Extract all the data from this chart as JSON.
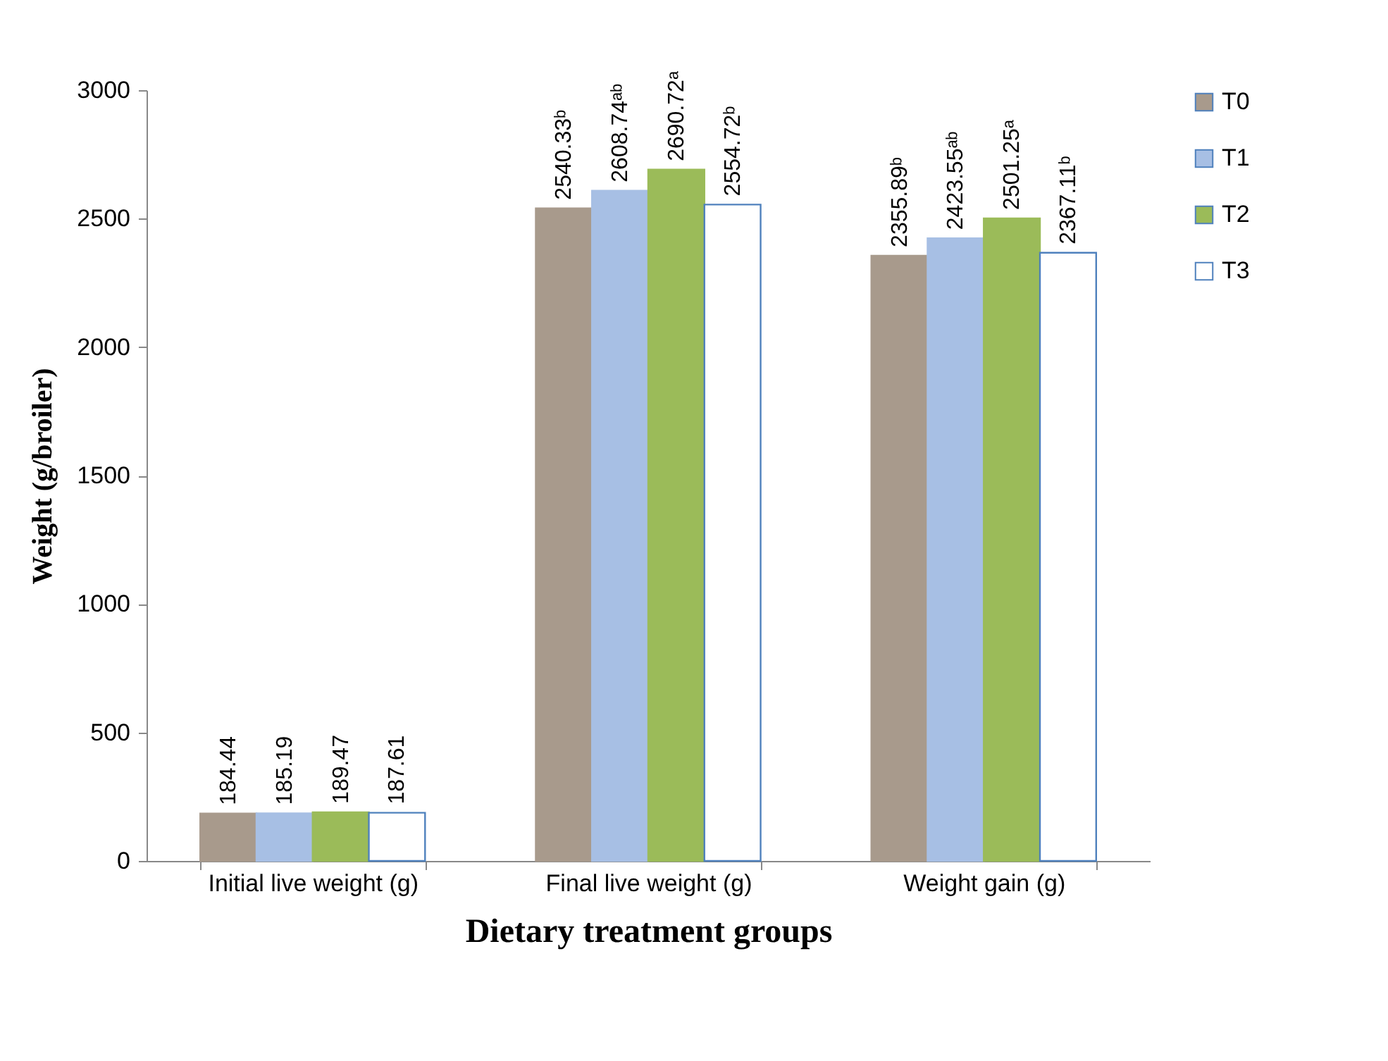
{
  "chart_data": {
    "type": "bar",
    "xlabel": "Dietary treatment groups",
    "ylabel": "Weight  (g/broiler)",
    "categories": [
      "Initial live weight (g)",
      "Final live weight (g)",
      "Weight gain (g)"
    ],
    "series": [
      {
        "name": "T0",
        "color": "#a89a8c",
        "values": [
          184.44,
          2540.33,
          2355.89
        ],
        "value_labels": [
          "184.44",
          "2540.33ᵇ",
          "2355.89ᵇ"
        ]
      },
      {
        "name": "T1",
        "color": "#a7bfe4",
        "values": [
          185.19,
          2608.74,
          2423.55
        ],
        "value_labels": [
          "185.19",
          "2608.74ᵃᵇ",
          "2423.55ᵃᵇ"
        ]
      },
      {
        "name": "T2",
        "color": "#9bbb59",
        "values": [
          189.47,
          2690.72,
          2501.25
        ],
        "value_labels": [
          "189.47",
          "2690.72ᵃ",
          "2501.25ᵃ"
        ]
      },
      {
        "name": "T3",
        "color": "#ffffff",
        "values": [
          187.61,
          2554.72,
          2367.11
        ],
        "value_labels": [
          "187.61",
          "2554.72ᵇ",
          "2367.11ᵇ"
        ]
      }
    ],
    "ylim": [
      0,
      3000
    ],
    "yticks": [
      0,
      500,
      1000,
      1500,
      2000,
      2500,
      3000
    ],
    "grid": false,
    "legend": "right"
  }
}
